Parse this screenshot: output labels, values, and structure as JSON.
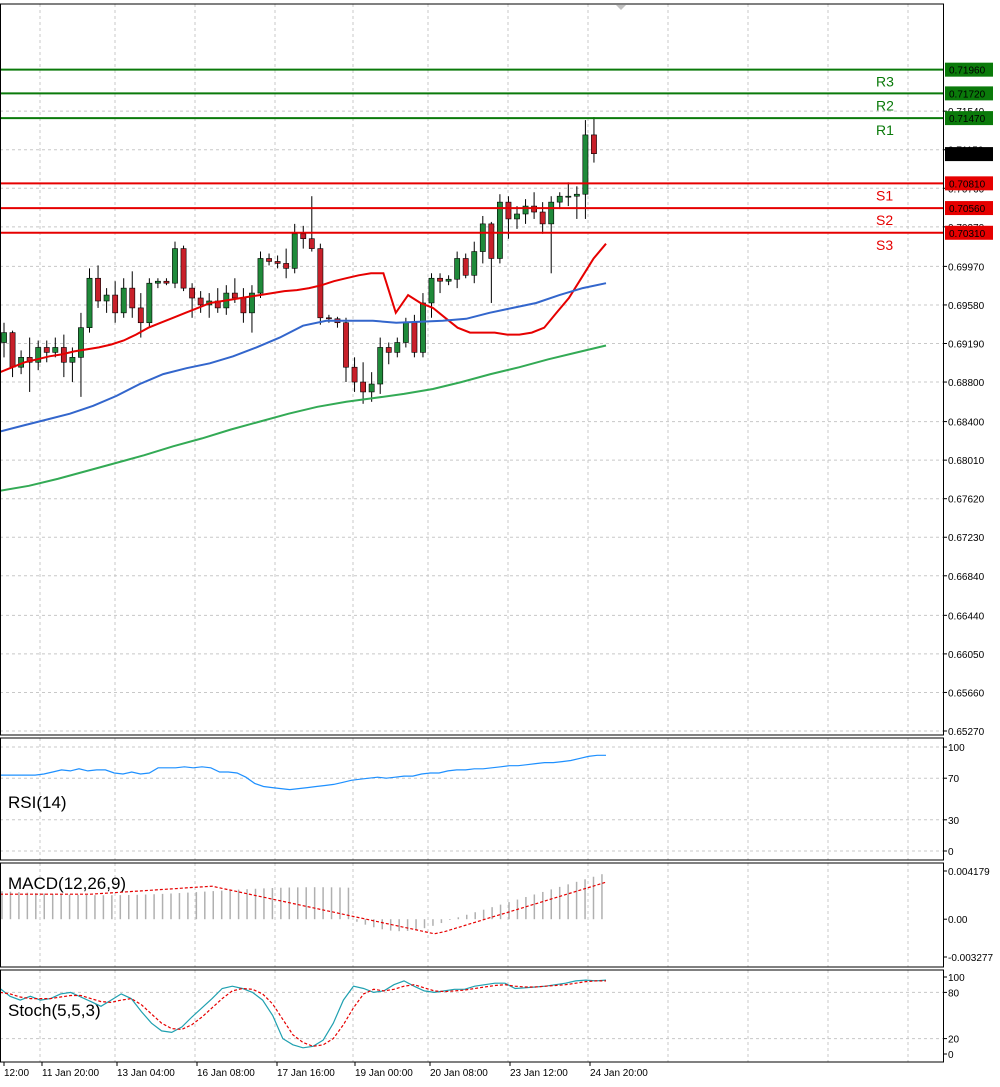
{
  "colors": {
    "resistance": "#0a7a0a",
    "support": "#e60000",
    "bull": "#1f8a3a",
    "bear": "#c8202a",
    "ma_fast": "#e60000",
    "ma_mid": "#3366cc",
    "ma_slow": "#33aa55",
    "rsi": "#1e90ff",
    "macd_hist": "#b0b0b0",
    "macd_signal": "#e60000",
    "stoch_main": "#1fa0b0",
    "stoch_signal": "#e60000",
    "grid": "#c8c8c8",
    "current_price_bg": "#000000"
  },
  "chart_data": [
    {
      "type": "candlestick",
      "panel": "price",
      "ylim": [
        0.6527,
        0.7225
      ],
      "price_ticks": [
        "0.71540",
        "0.71150",
        "0.70760",
        "0.70370",
        "0.69970",
        "0.69580",
        "0.69190",
        "0.68800",
        "0.68400",
        "0.68010",
        "0.67620",
        "0.67230",
        "0.66840",
        "0.66440",
        "0.66050",
        "0.65660",
        "0.65270"
      ],
      "x_ticks": [
        "12:00",
        "11 Jan 20:00",
        "13 Jan 04:00",
        "16 Jan 08:00",
        "17 Jan 16:00",
        "19 Jan 00:00",
        "20 Jan 08:00",
        "23 Jan 12:00",
        "24 Jan 20:00"
      ],
      "current_price": "0.71106",
      "levels": [
        {
          "label": "R3",
          "value": 0.7196,
          "text": "0.71960",
          "kind": "resistance"
        },
        {
          "label": "R2",
          "value": 0.7172,
          "text": "0.71720",
          "kind": "resistance"
        },
        {
          "label": "R1",
          "value": 0.7147,
          "text": "0.71470",
          "kind": "resistance"
        },
        {
          "label": "S1",
          "value": 0.7081,
          "text": "0.70810",
          "kind": "support"
        },
        {
          "label": "S2",
          "value": 0.7056,
          "text": "0.70560",
          "kind": "support"
        },
        {
          "label": "S3",
          "value": 0.7031,
          "text": "0.70310",
          "kind": "support"
        }
      ],
      "candles": [
        [
          0.692,
          0.694,
          0.6905,
          0.693
        ],
        [
          0.693,
          0.6932,
          0.6885,
          0.6895
        ],
        [
          0.6895,
          0.6912,
          0.6888,
          0.6905
        ],
        [
          0.6905,
          0.6925,
          0.687,
          0.69
        ],
        [
          0.69,
          0.6922,
          0.6892,
          0.6915
        ],
        [
          0.6915,
          0.6922,
          0.69,
          0.691
        ],
        [
          0.691,
          0.6925,
          0.6905,
          0.6915
        ],
        [
          0.6915,
          0.6928,
          0.6885,
          0.69
        ],
        [
          0.69,
          0.6915,
          0.688,
          0.6905
        ],
        [
          0.6905,
          0.695,
          0.6865,
          0.6935
        ],
        [
          0.6935,
          0.6995,
          0.693,
          0.6985
        ],
        [
          0.6985,
          0.6998,
          0.6955,
          0.6962
        ],
        [
          0.6962,
          0.6975,
          0.695,
          0.6968
        ],
        [
          0.6968,
          0.6982,
          0.694,
          0.695
        ],
        [
          0.695,
          0.6985,
          0.6945,
          0.6975
        ],
        [
          0.6975,
          0.6992,
          0.6945,
          0.6955
        ],
        [
          0.6955,
          0.697,
          0.6925,
          0.694
        ],
        [
          0.694,
          0.6985,
          0.6935,
          0.698
        ],
        [
          0.698,
          0.6985,
          0.6975,
          0.6982
        ],
        [
          0.6982,
          0.6985,
          0.6978,
          0.698
        ],
        [
          0.698,
          0.7022,
          0.6975,
          0.7015
        ],
        [
          0.7015,
          0.7018,
          0.6972,
          0.6975
        ],
        [
          0.6975,
          0.698,
          0.6945,
          0.6965
        ],
        [
          0.6965,
          0.6972,
          0.695,
          0.6958
        ],
        [
          0.6958,
          0.697,
          0.6945,
          0.6962
        ],
        [
          0.6962,
          0.6975,
          0.695,
          0.6955
        ],
        [
          0.6955,
          0.6978,
          0.6948,
          0.697
        ],
        [
          0.697,
          0.6985,
          0.696,
          0.6965
        ],
        [
          0.6965,
          0.6975,
          0.694,
          0.695
        ],
        [
          0.695,
          0.6978,
          0.693,
          0.697
        ],
        [
          0.697,
          0.7012,
          0.6965,
          0.7005
        ],
        [
          0.7005,
          0.701,
          0.6998,
          0.7002
        ],
        [
          0.7002,
          0.7008,
          0.6995,
          0.7
        ],
        [
          0.7,
          0.7015,
          0.6985,
          0.6995
        ],
        [
          0.6995,
          0.704,
          0.699,
          0.703
        ],
        [
          0.703,
          0.7038,
          0.7015,
          0.7025
        ],
        [
          0.7025,
          0.7068,
          0.7012,
          0.7015
        ],
        [
          0.7015,
          0.702,
          0.6938,
          0.6945
        ],
        [
          0.6945,
          0.6948,
          0.694,
          0.6944
        ],
        [
          0.6944,
          0.6946,
          0.6935,
          0.694
        ],
        [
          0.694,
          0.6945,
          0.688,
          0.6895
        ],
        [
          0.6895,
          0.6905,
          0.687,
          0.688
        ],
        [
          0.688,
          0.69,
          0.6858,
          0.687
        ],
        [
          0.687,
          0.689,
          0.686,
          0.6878
        ],
        [
          0.6878,
          0.6925,
          0.6868,
          0.6915
        ],
        [
          0.6915,
          0.692,
          0.6898,
          0.691
        ],
        [
          0.691,
          0.6925,
          0.6905,
          0.692
        ],
        [
          0.692,
          0.6945,
          0.6915,
          0.694
        ],
        [
          0.694,
          0.6948,
          0.6905,
          0.691
        ],
        [
          0.691,
          0.697,
          0.6905,
          0.696
        ],
        [
          0.696,
          0.699,
          0.6945,
          0.6985
        ],
        [
          0.6985,
          0.699,
          0.697,
          0.6982
        ],
        [
          0.6982,
          0.6988,
          0.6978,
          0.6984
        ],
        [
          0.6984,
          0.7012,
          0.6975,
          0.7005
        ],
        [
          0.7005,
          0.701,
          0.6985,
          0.6988
        ],
        [
          0.6988,
          0.7022,
          0.698,
          0.7012
        ],
        [
          0.7012,
          0.7048,
          0.7,
          0.704
        ],
        [
          0.704,
          0.7042,
          0.696,
          0.7005
        ],
        [
          0.7005,
          0.707,
          0.7,
          0.7062
        ],
        [
          0.7062,
          0.7068,
          0.7025,
          0.7045
        ],
        [
          0.7045,
          0.7058,
          0.7035,
          0.705
        ],
        [
          0.705,
          0.7065,
          0.704,
          0.7058
        ],
        [
          0.7058,
          0.7072,
          0.7045,
          0.7052
        ],
        [
          0.7052,
          0.7062,
          0.703,
          0.704
        ],
        [
          0.704,
          0.7068,
          0.699,
          0.7062
        ],
        [
          0.7062,
          0.7072,
          0.7055,
          0.7068
        ],
        [
          0.7068,
          0.7082,
          0.7058,
          0.7068
        ],
        [
          0.7068,
          0.7078,
          0.7045,
          0.707
        ],
        [
          0.707,
          0.7145,
          0.7045,
          0.713
        ],
        [
          0.713,
          0.7148,
          0.7102,
          0.7111
        ]
      ],
      "ma_fast": [
        0.689,
        0.6895,
        0.69,
        0.6903,
        0.6906,
        0.6908,
        0.6911,
        0.6913,
        0.6915,
        0.6918,
        0.6922,
        0.6928,
        0.6935,
        0.694,
        0.6945,
        0.695,
        0.6955,
        0.696,
        0.6962,
        0.6964,
        0.6966,
        0.6968,
        0.697,
        0.6972,
        0.6973,
        0.6975,
        0.6978,
        0.6982,
        0.6985,
        0.6988,
        0.699,
        0.699,
        0.695,
        0.6968,
        0.696,
        0.6955,
        0.6945,
        0.6935,
        0.693,
        0.693,
        0.693,
        0.6928,
        0.6928,
        0.693,
        0.6935,
        0.695,
        0.6965,
        0.6985,
        0.7005,
        0.702
      ],
      "ma_mid": [
        0.683,
        0.6836,
        0.6842,
        0.6848,
        0.6856,
        0.6866,
        0.6878,
        0.6888,
        0.6894,
        0.6899,
        0.6906,
        0.6915,
        0.6925,
        0.6937,
        0.6942,
        0.6942,
        0.6942,
        0.694,
        0.6941,
        0.6942,
        0.6944,
        0.695,
        0.6955,
        0.696,
        0.6968,
        0.6975,
        0.698
      ],
      "ma_slow": [
        0.677,
        0.6775,
        0.6782,
        0.679,
        0.6798,
        0.6806,
        0.6815,
        0.6823,
        0.6832,
        0.684,
        0.6848,
        0.6855,
        0.686,
        0.6864,
        0.6868,
        0.6873,
        0.688,
        0.6888,
        0.6895,
        0.6903,
        0.691,
        0.6917
      ]
    },
    {
      "type": "line",
      "panel": "rsi",
      "title": "RSI(14)",
      "ylim": [
        0,
        100
      ],
      "ticks": [
        "100",
        "70",
        "30",
        "0"
      ],
      "values": [
        73,
        73,
        73,
        73,
        73,
        74,
        76,
        78,
        77,
        79,
        77,
        78,
        78,
        75,
        74,
        76,
        74,
        75,
        80,
        80,
        80,
        81,
        80,
        81,
        80,
        76,
        76,
        75,
        71,
        65,
        62,
        61,
        60,
        59,
        60,
        61,
        62,
        63,
        64,
        66,
        68,
        69,
        70,
        71,
        70,
        71,
        72,
        72,
        74,
        75,
        75,
        77,
        78,
        78,
        79,
        79,
        80,
        81,
        82,
        82,
        83,
        84,
        85,
        85,
        86,
        87,
        89,
        91,
        92,
        92
      ]
    },
    {
      "type": "bar",
      "panel": "macd",
      "title": "MACD(12,26,9)",
      "ylim": [
        -0.003277,
        0.004179
      ],
      "ticks": [
        "0.004179",
        "0.00",
        "-0.003277"
      ]
    },
    {
      "type": "line",
      "panel": "stoch",
      "title": "Stoch(5,5,3)",
      "ylim": [
        0,
        100
      ],
      "ticks": [
        "100",
        "80",
        "20",
        "0"
      ],
      "main": [
        85,
        75,
        70,
        75,
        70,
        72,
        78,
        80,
        74,
        68,
        62,
        70,
        78,
        72,
        55,
        40,
        30,
        28,
        35,
        48,
        60,
        72,
        85,
        88,
        85,
        80,
        70,
        50,
        20,
        12,
        8,
        10,
        18,
        40,
        70,
        88,
        85,
        80,
        82,
        90,
        95,
        88,
        82,
        80,
        82,
        84,
        84,
        88,
        90,
        92,
        92,
        85,
        86,
        87,
        88,
        90,
        92,
        95,
        96,
        95,
        96
      ],
      "signal": [
        80,
        78,
        74,
        72,
        72,
        72,
        74,
        76,
        76,
        72,
        68,
        67,
        70,
        72,
        64,
        52,
        40,
        33,
        32,
        38,
        48,
        60,
        72,
        82,
        85,
        84,
        78,
        65,
        45,
        25,
        15,
        10,
        12,
        20,
        38,
        60,
        78,
        84,
        82,
        84,
        88,
        90,
        86,
        82,
        81,
        82,
        83,
        85,
        87,
        89,
        90,
        88,
        87,
        87,
        88,
        89,
        90,
        92,
        94,
        95,
        95
      ]
    }
  ]
}
